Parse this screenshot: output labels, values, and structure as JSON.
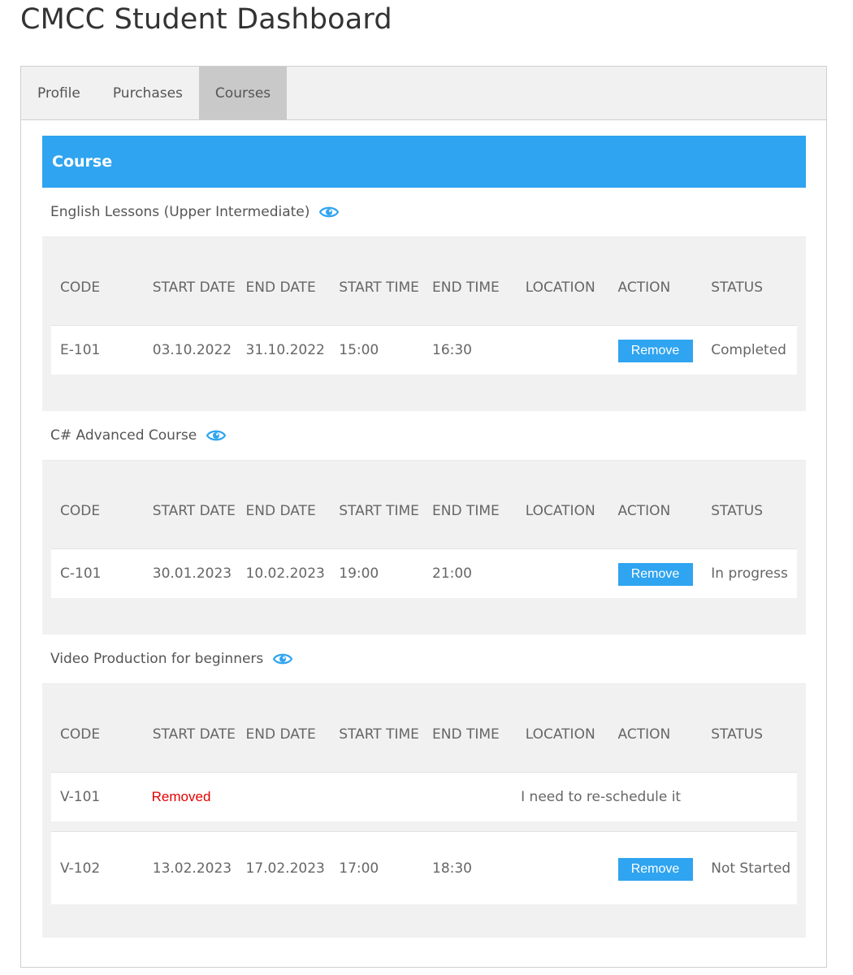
{
  "page": {
    "title": "CMCC Student Dashboard"
  },
  "tabs": [
    {
      "label": "Profile",
      "active": false
    },
    {
      "label": "Purchases",
      "active": false
    },
    {
      "label": "Courses",
      "active": true
    }
  ],
  "course_section": {
    "header": "Course",
    "columns": [
      "CODE",
      "START DATE",
      "END DATE",
      "START TIME",
      "END TIME",
      "LOCATION",
      "ACTION",
      "STATUS"
    ],
    "courses": [
      {
        "title": "English Lessons (Upper Intermediate)",
        "icon": "eye-icon",
        "rows": [
          {
            "code": "E-101",
            "start_date": "03.10.2022",
            "end_date": "31.10.2022",
            "start_time": "15:00",
            "end_time": "16:30",
            "location": "",
            "action": "Remove",
            "status": "Completed"
          }
        ]
      },
      {
        "title": "C# Advanced Course",
        "icon": "eye-icon",
        "rows": [
          {
            "code": "C-101",
            "start_date": "30.01.2023",
            "end_date": "10.02.2023",
            "start_time": "19:00",
            "end_time": "21:00",
            "location": "",
            "action": "Remove",
            "status": "In progress"
          }
        ]
      },
      {
        "title": "Video Production for beginners",
        "icon": "eye-icon",
        "rows": [
          {
            "code": "V-101",
            "removed_label": "Removed",
            "note": "I need to re-schedule it"
          },
          {
            "code": "V-102",
            "start_date": "13.02.2023",
            "end_date": "17.02.2023",
            "start_time": "17:00",
            "end_time": "18:30",
            "location": "",
            "action": "Remove",
            "status": "Not Started"
          }
        ]
      }
    ]
  },
  "colors": {
    "accent": "#2fa4f0",
    "removed": "#e50000",
    "tab_active": "#c9c9c9",
    "panel_bg": "#f1f1f1"
  }
}
